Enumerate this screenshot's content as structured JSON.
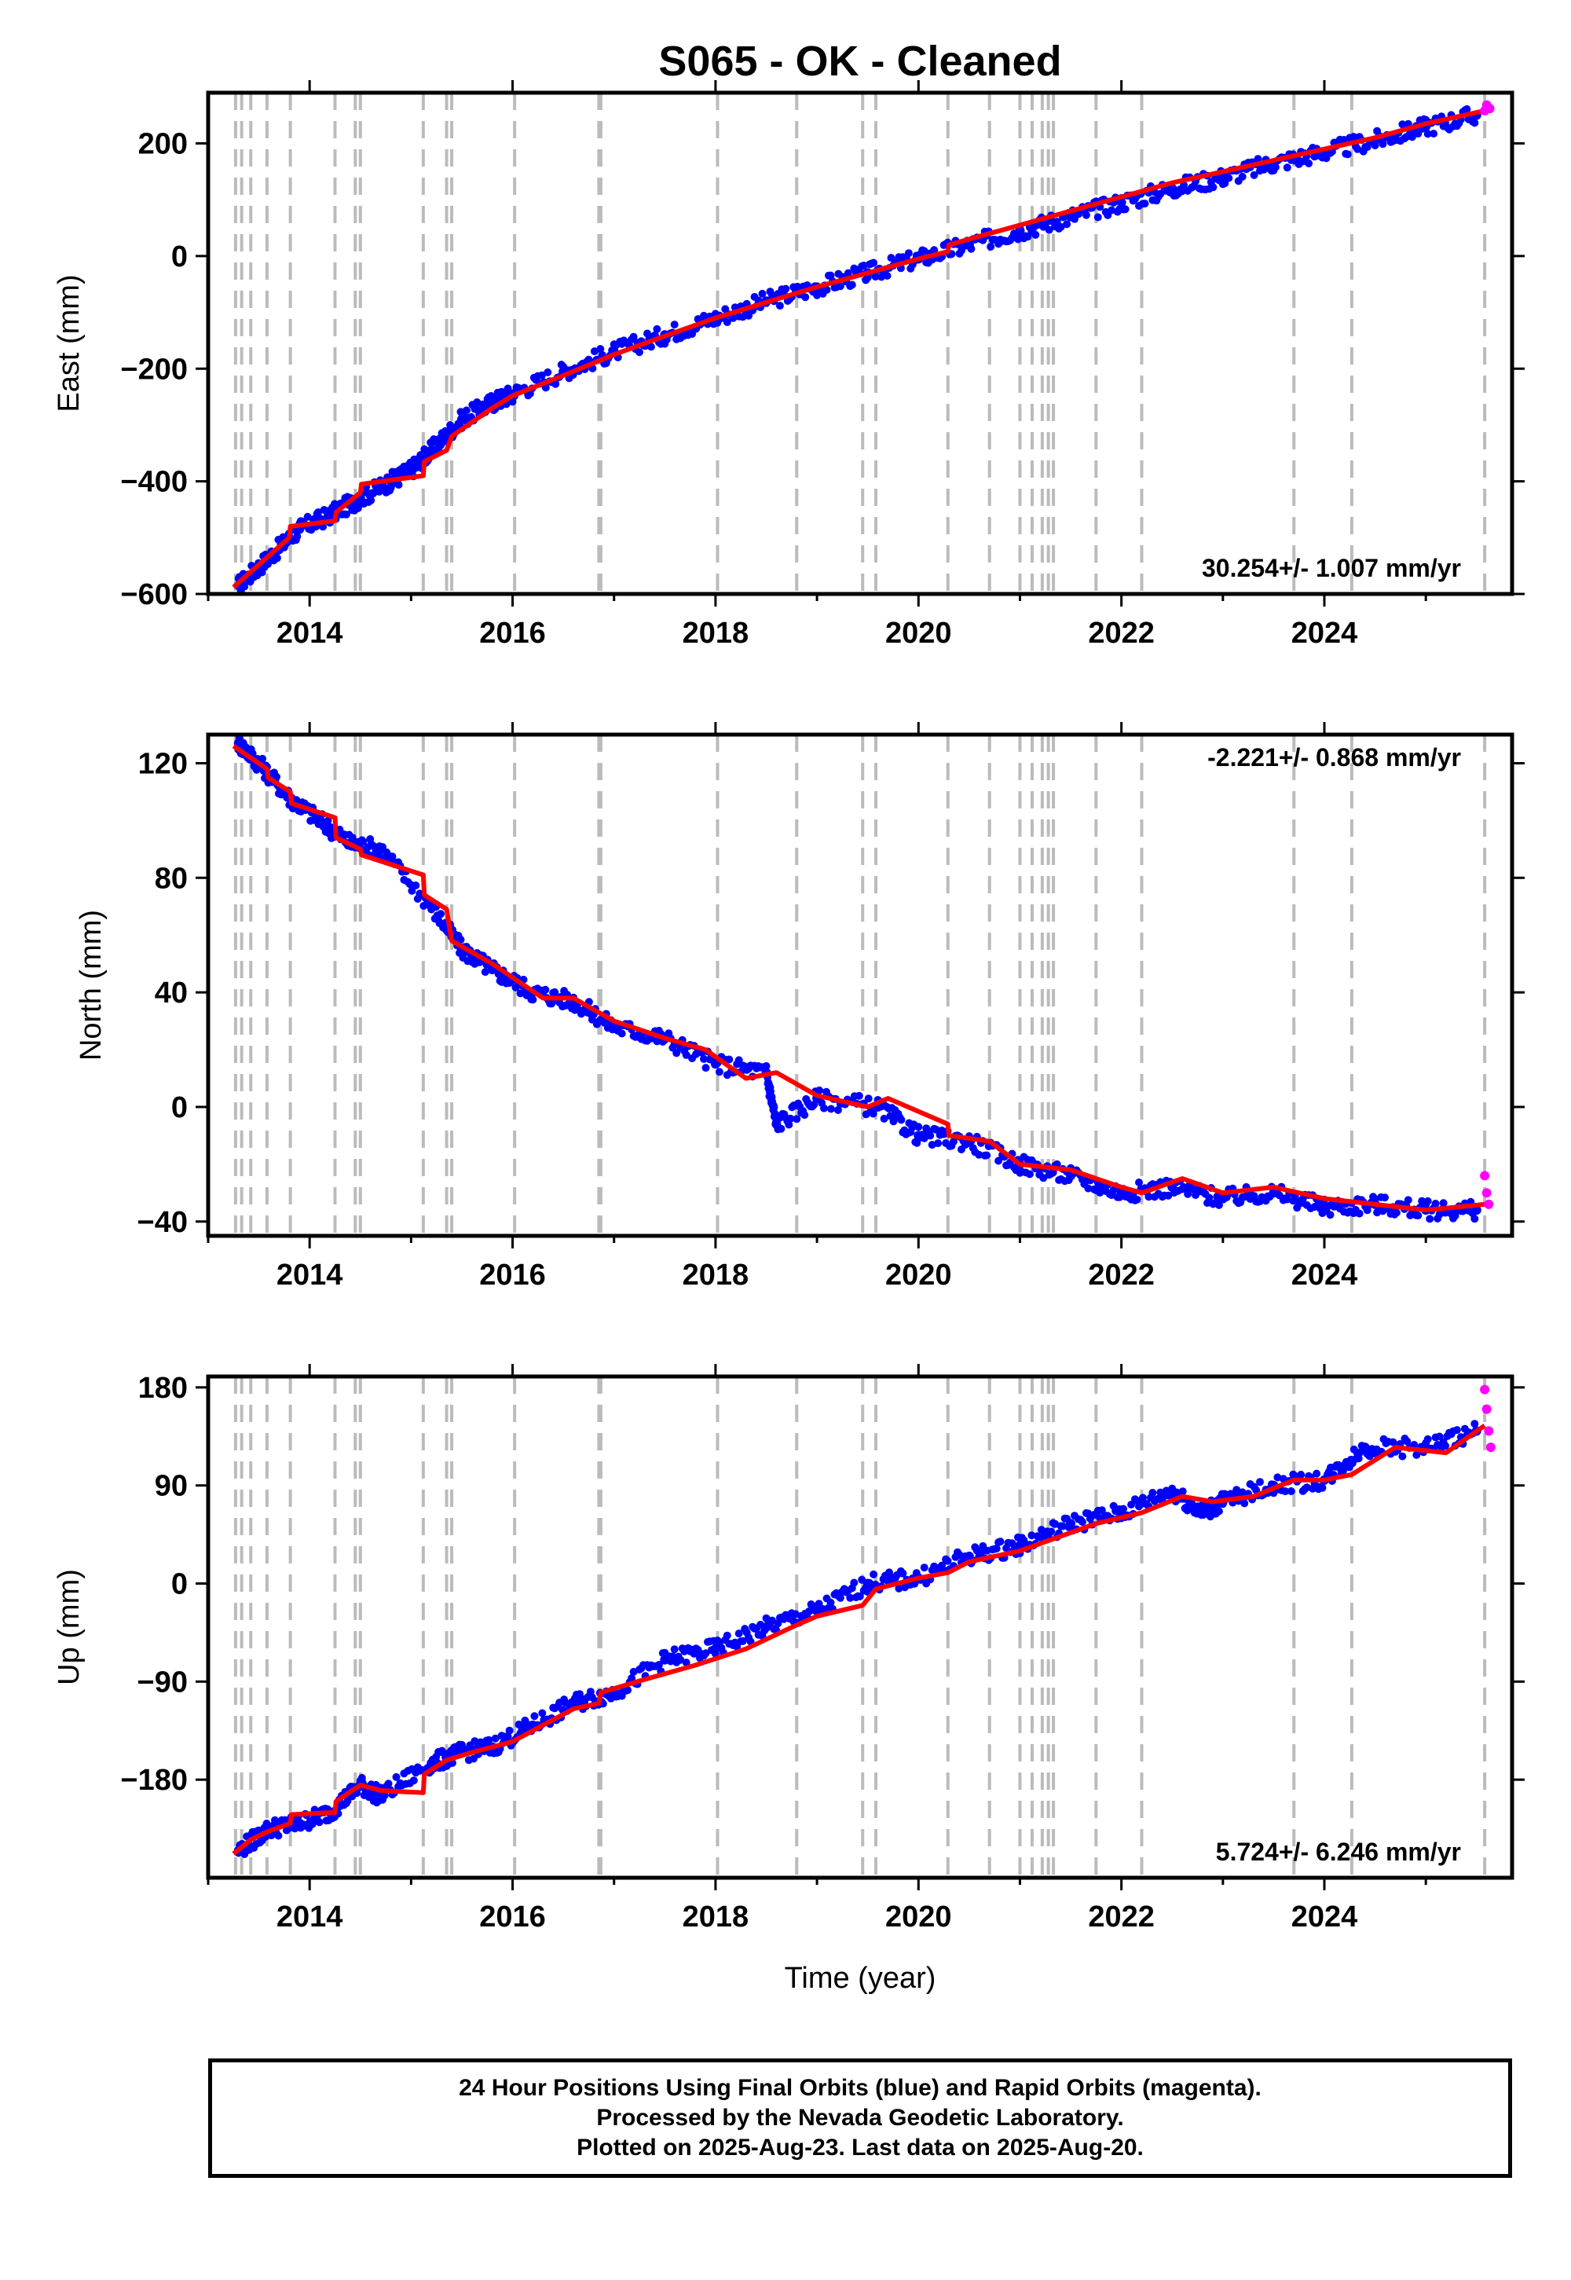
{
  "title": "S065  - OK - Cleaned",
  "colors": {
    "final_orbits": "#0000ff",
    "rapid_orbits": "#ff00ff",
    "model_fit": "#ff0000",
    "event_lines": "#bbbbbb",
    "frame": "#000000"
  },
  "x_axis": {
    "label": "Time (year)",
    "range": [
      2013.0,
      2025.85
    ],
    "ticks": [
      2014,
      2016,
      2018,
      2020,
      2022,
      2024
    ],
    "tick_labels": [
      "2014",
      "2016",
      "2018",
      "2020",
      "2022",
      "2024"
    ]
  },
  "event_lines": [
    2013.27,
    2013.33,
    2013.42,
    2013.58,
    2013.81,
    2014.25,
    2014.45,
    2014.5,
    2015.12,
    2015.35,
    2015.4,
    2016.02,
    2016.85,
    2016.87,
    2018.02,
    2018.8,
    2019.45,
    2019.58,
    2020.29,
    2020.7,
    2021.0,
    2021.12,
    2021.22,
    2021.28,
    2021.33,
    2021.75,
    2022.2,
    2023.7,
    2024.27,
    2025.58
  ],
  "chart_data": [
    {
      "type": "scatter",
      "name": "East",
      "ylabel": "East (mm)",
      "ylim": [
        -600,
        290
      ],
      "yticks": [
        -600,
        -400,
        -200,
        0,
        200
      ],
      "ytick_labels": [
        "−600",
        "−400",
        "−200",
        "0",
        "200"
      ],
      "rate_label": "30.254+/- 1.007 mm/yr",
      "rate_position": "bottom-right",
      "final_x": [
        2013.3,
        2013.6,
        2013.9,
        2014.2,
        2014.5,
        2014.8,
        2015.0,
        2015.2,
        2015.5,
        2015.8,
        2016.0,
        2016.5,
        2017.0,
        2017.5,
        2018.0,
        2018.5,
        2019.0,
        2019.5,
        2020.0,
        2020.5,
        2021.0,
        2021.5,
        2022.0,
        2022.5,
        2023.0,
        2023.5,
        2024.0,
        2024.5,
        2025.0,
        2025.5
      ],
      "final_y": [
        -585,
        -535,
        -485,
        -460,
        -430,
        -400,
        -380,
        -345,
        -290,
        -260,
        -245,
        -205,
        -170,
        -140,
        -110,
        -80,
        -55,
        -30,
        -5,
        20,
        45,
        70,
        95,
        120,
        140,
        165,
        185,
        205,
        230,
        250
      ],
      "rapid_x": [
        2025.58,
        2025.6,
        2025.63
      ],
      "rapid_y": [
        258,
        268,
        262
      ],
      "fit_x": [
        2013.25,
        2013.8,
        2013.81,
        2014.25,
        2014.26,
        2014.5,
        2014.51,
        2015.12,
        2015.13,
        2015.35,
        2015.4,
        2015.8,
        2016.0,
        2016.5,
        2017.0,
        2017.5,
        2018.0,
        2018.5,
        2019.0,
        2019.5,
        2020.0,
        2020.29,
        2020.3,
        2020.7,
        2021.0,
        2021.5,
        2022.0,
        2022.5,
        2023.0,
        2023.5,
        2024.0,
        2024.5,
        2025.0,
        2025.58
      ],
      "fit_y": [
        -588,
        -500,
        -480,
        -470,
        -455,
        -420,
        -405,
        -390,
        -365,
        -345,
        -320,
        -270,
        -248,
        -212,
        -175,
        -142,
        -110,
        -82,
        -55,
        -30,
        -5,
        8,
        20,
        40,
        55,
        80,
        105,
        130,
        150,
        170,
        190,
        210,
        235,
        258
      ]
    },
    {
      "type": "scatter",
      "name": "North",
      "ylabel": "North (mm)",
      "ylim": [
        -45,
        130
      ],
      "yticks": [
        -40,
        0,
        40,
        80,
        120
      ],
      "ytick_labels": [
        "−40",
        "0",
        "40",
        "80",
        "120"
      ],
      "rate_label": "-2.221+/- 0.868 mm/yr",
      "rate_position": "top-right",
      "final_x": [
        2013.3,
        2013.5,
        2013.8,
        2014.1,
        2014.4,
        2014.7,
        2015.2,
        2015.5,
        2015.8,
        2016.2,
        2016.6,
        2017.0,
        2017.5,
        2018.0,
        2018.5,
        2018.6,
        2019.0,
        2019.6,
        2020.0,
        2020.5,
        2021.0,
        2021.5,
        2022.0,
        2022.5,
        2023.0,
        2023.5,
        2024.0,
        2024.5,
        2025.0,
        2025.5
      ],
      "final_y": [
        127,
        120,
        108,
        100,
        92,
        90,
        70,
        55,
        48,
        40,
        37,
        28,
        24,
        15,
        12,
        -6,
        3,
        0,
        -10,
        -12,
        -20,
        -24,
        -30,
        -28,
        -32,
        -30,
        -35,
        -34,
        -36,
        -36
      ],
      "rapid_x": [
        2025.58,
        2025.6,
        2025.62
      ],
      "rapid_y": [
        -24,
        -30,
        -34
      ],
      "fit_x": [
        2013.25,
        2013.58,
        2013.59,
        2013.81,
        2013.82,
        2014.25,
        2014.26,
        2014.5,
        2014.51,
        2015.12,
        2015.13,
        2015.35,
        2015.4,
        2015.8,
        2016.3,
        2016.6,
        2017.0,
        2017.5,
        2017.9,
        2018.3,
        2018.6,
        2019.0,
        2019.5,
        2019.7,
        2020.29,
        2020.3,
        2020.7,
        2021.0,
        2021.5,
        2022.0,
        2022.2,
        2022.6,
        2023.0,
        2023.5,
        2024.0,
        2024.5,
        2025.0,
        2025.58
      ],
      "fit_y": [
        126,
        118,
        115,
        110,
        106,
        101,
        94,
        90,
        88,
        81,
        74,
        69,
        58,
        50,
        38,
        38,
        30,
        24,
        20,
        10,
        12,
        4,
        0,
        3,
        -6,
        -10,
        -12,
        -20,
        -22,
        -28,
        -30,
        -25,
        -30,
        -28,
        -32,
        -34,
        -36,
        -34
      ]
    },
    {
      "type": "scatter",
      "name": "Up",
      "ylabel": "Up (mm)",
      "ylim": [
        -270,
        190
      ],
      "yticks": [
        -180,
        -90,
        0,
        90,
        180
      ],
      "ytick_labels": [
        "−180",
        "−90",
        "0",
        "90",
        "180"
      ],
      "rate_label": "5.724+/- 6.246 mm/yr",
      "rate_position": "bottom-right",
      "final_x": [
        2013.3,
        2013.6,
        2013.9,
        2014.2,
        2014.5,
        2014.7,
        2015.2,
        2015.5,
        2015.8,
        2016.2,
        2016.6,
        2017.0,
        2017.5,
        2018.0,
        2018.5,
        2019.0,
        2019.5,
        2020.0,
        2020.5,
        2021.0,
        2021.5,
        2022.0,
        2022.5,
        2022.8,
        2023.0,
        2023.5,
        2024.0,
        2024.4,
        2025.0,
        2025.5
      ],
      "final_y": [
        -245,
        -225,
        -220,
        -210,
        -185,
        -195,
        -165,
        -155,
        -150,
        -130,
        -110,
        -100,
        -70,
        -60,
        -40,
        -25,
        0,
        5,
        25,
        35,
        55,
        65,
        85,
        65,
        75,
        90,
        95,
        125,
        125,
        140
      ],
      "rapid_x": [
        2025.58,
        2025.6,
        2025.62,
        2025.64
      ],
      "rapid_y": [
        178,
        160,
        140,
        125
      ],
      "fit_x": [
        2013.25,
        2013.42,
        2013.58,
        2013.81,
        2013.82,
        2014.25,
        2014.26,
        2014.45,
        2014.5,
        2014.7,
        2015.12,
        2015.13,
        2015.35,
        2015.6,
        2016.0,
        2016.3,
        2016.6,
        2016.85,
        2016.87,
        2017.3,
        2017.8,
        2018.3,
        2018.8,
        2019.0,
        2019.45,
        2019.58,
        2020.0,
        2020.29,
        2020.5,
        2021.0,
        2021.3,
        2021.75,
        2022.2,
        2022.6,
        2022.9,
        2023.3,
        2023.7,
        2024.0,
        2024.27,
        2024.7,
        2025.2,
        2025.58
      ],
      "fit_y": [
        -248,
        -235,
        -228,
        -220,
        -212,
        -210,
        -200,
        -188,
        -185,
        -190,
        -192,
        -175,
        -162,
        -155,
        -145,
        -130,
        -115,
        -110,
        -100,
        -88,
        -75,
        -60,
        -38,
        -30,
        -20,
        -5,
        5,
        10,
        20,
        30,
        40,
        55,
        65,
        80,
        75,
        80,
        95,
        95,
        100,
        125,
        120,
        145
      ]
    }
  ],
  "footer": {
    "line1": "24 Hour Positions Using Final Orbits (blue) and Rapid Orbits (magenta).",
    "line2": "Processed by the Nevada Geodetic Laboratory.",
    "line3": "Plotted on 2025-Aug-23. Last data on 2025-Aug-20."
  }
}
